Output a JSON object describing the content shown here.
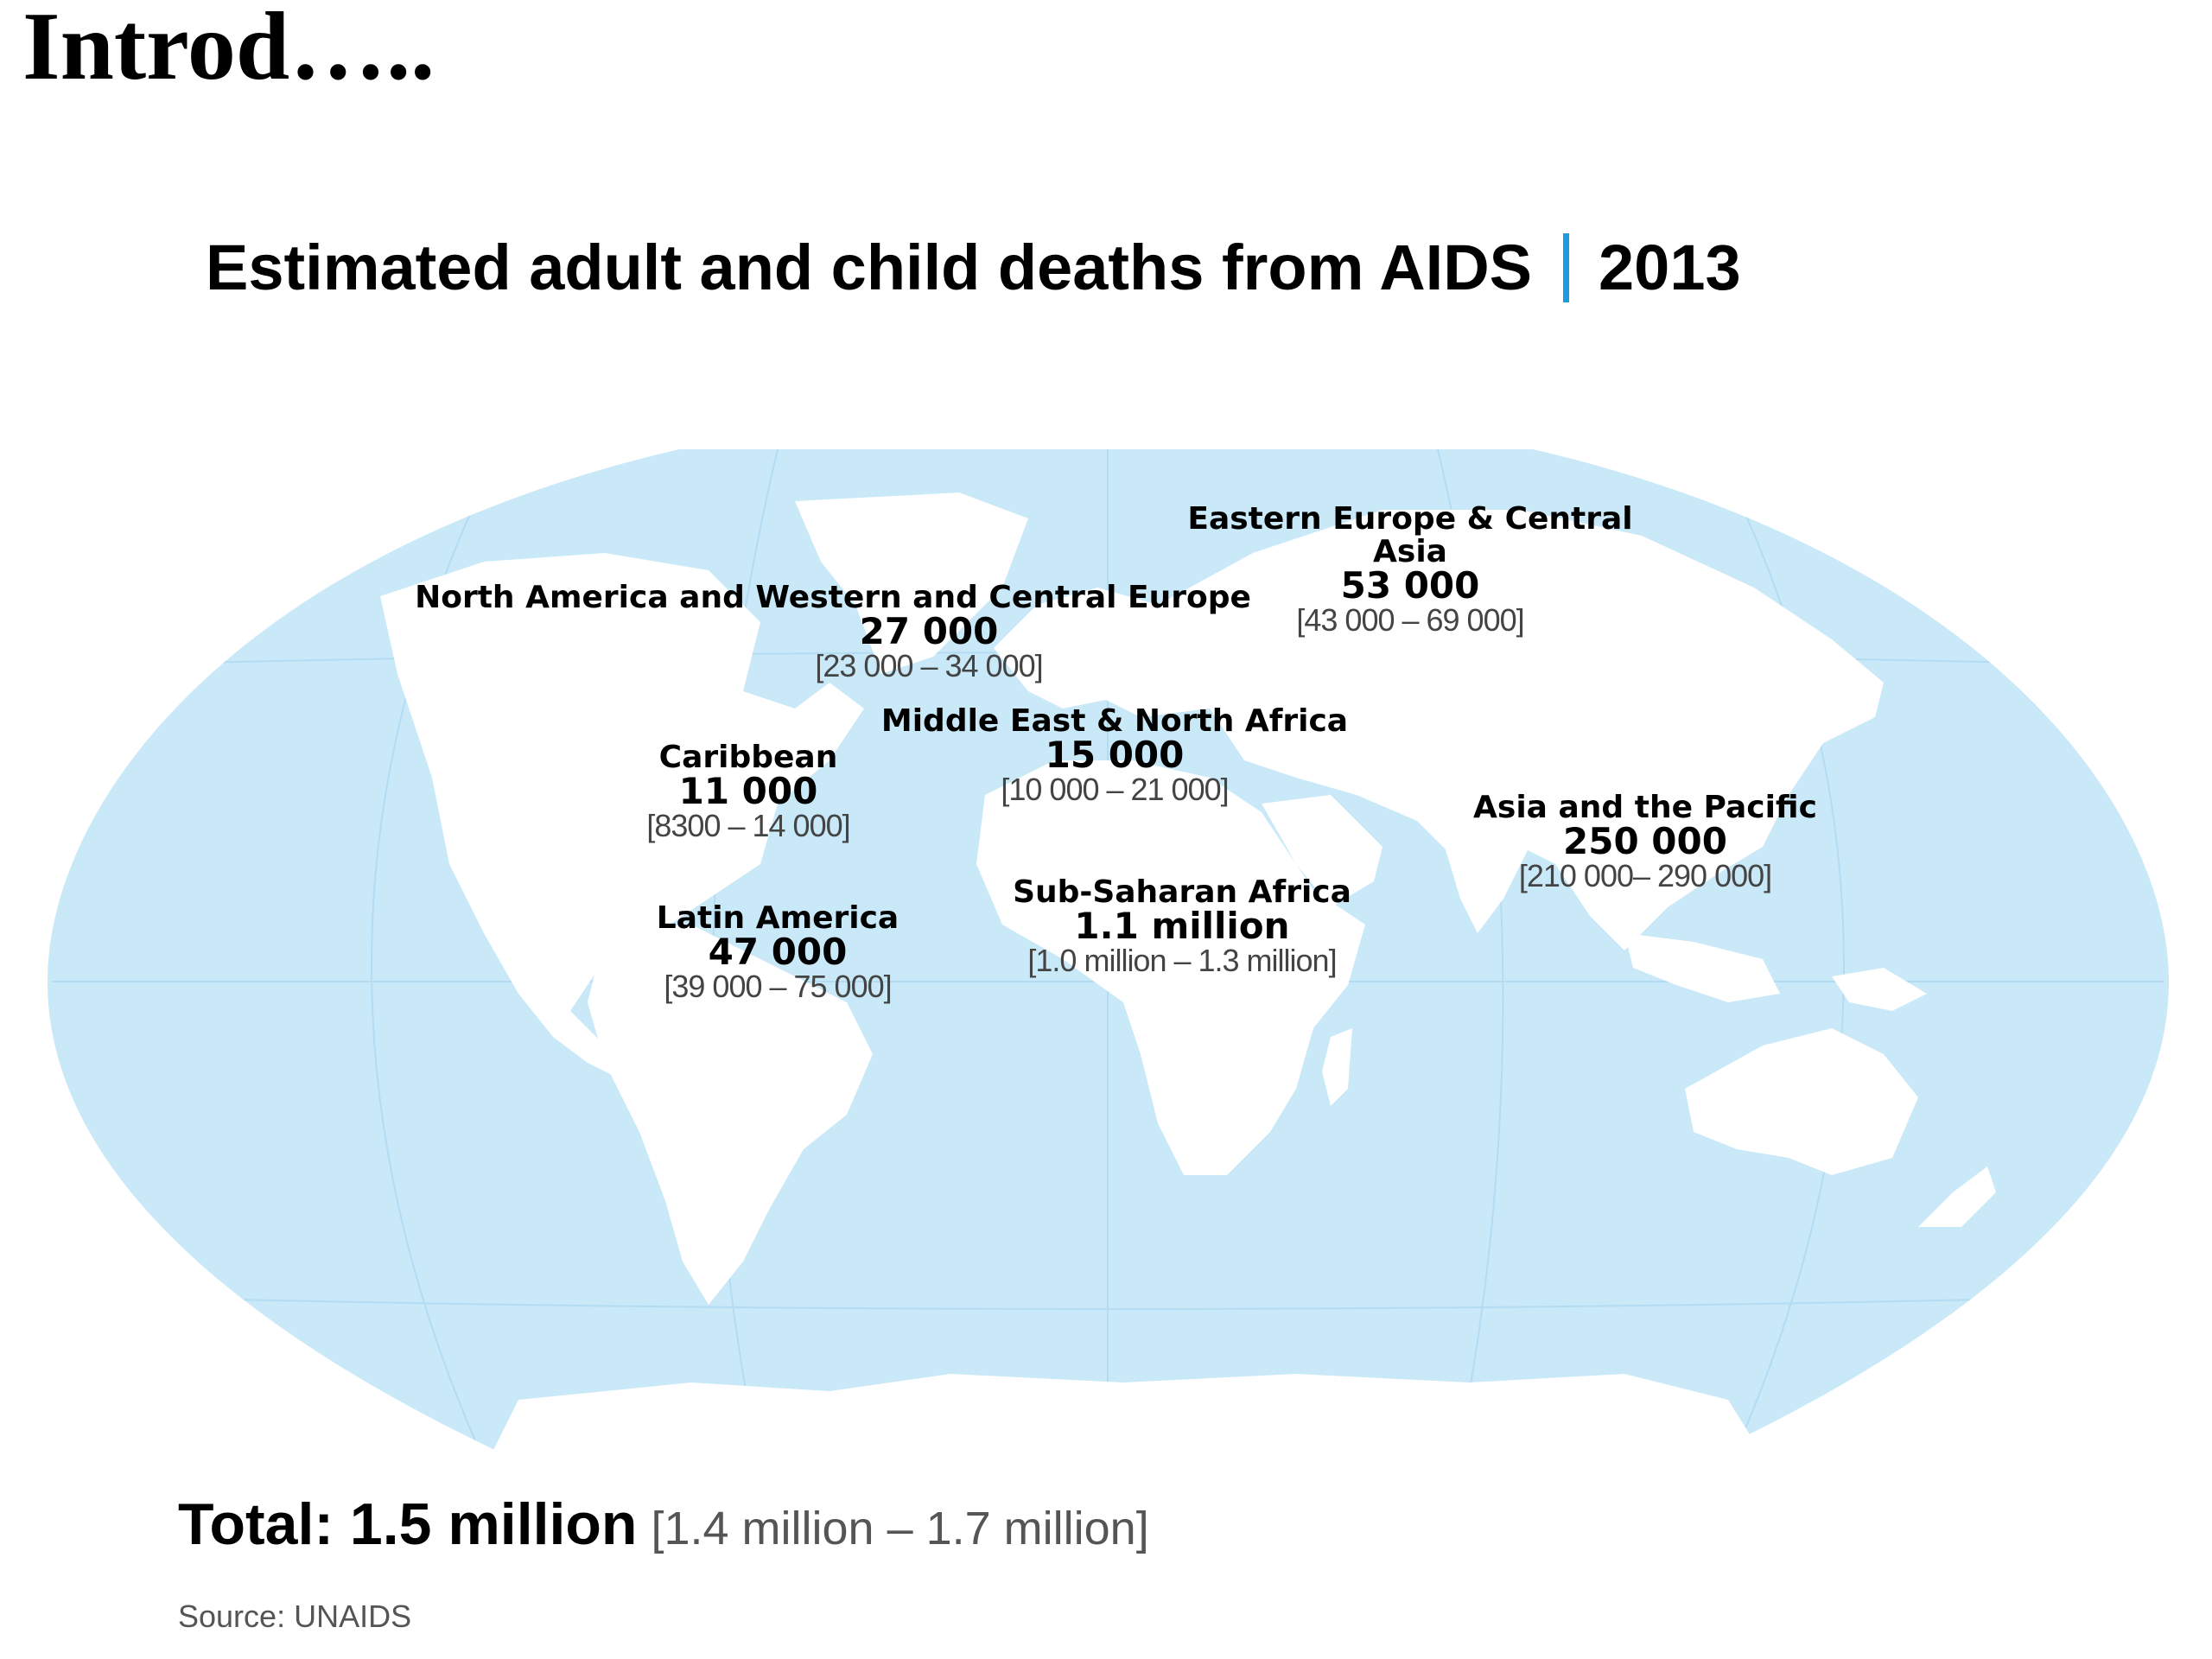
{
  "slide": {
    "heading": "Introd….."
  },
  "chart_title": {
    "main": "Estimated adult and child deaths from AIDS",
    "year": "2013"
  },
  "colors": {
    "ocean": "#c9e8f8",
    "land": "#ffffff",
    "accent": "#1e9be0",
    "grid": "#b3dcf2"
  },
  "regions": [
    {
      "id": "eeca",
      "name_lines": [
        "Eastern Europe & Central",
        "Asia"
      ],
      "value": "53 000",
      "range": "[43 000 – 69 000]"
    },
    {
      "id": "nawce",
      "name_lines": [
        "North America and Western and Central Europe"
      ],
      "value": "27 000",
      "range": "[23 000 – 34 000]"
    },
    {
      "id": "mena",
      "name_lines": [
        "Middle East & North Africa"
      ],
      "value": "15 000",
      "range": "[10 000 – 21 000]"
    },
    {
      "id": "caribbean",
      "name_lines": [
        "Caribbean"
      ],
      "value": "11 000",
      "range": "[8300 – 14 000]"
    },
    {
      "id": "asia-pacific",
      "name_lines": [
        "Asia and the Pacific"
      ],
      "value": "250 000",
      "range": "[210 000– 290 000]"
    },
    {
      "id": "ssa",
      "name_lines": [
        "Sub-Saharan Africa"
      ],
      "value": "1.1 million",
      "range": "[1.0 million – 1.3 million]"
    },
    {
      "id": "latin-america",
      "name_lines": [
        "Latin America"
      ],
      "value": "47 000",
      "range": "[39 000 – 75 000]"
    }
  ],
  "total": {
    "label": "Total: 1.5 million",
    "range": "[1.4 million – 1.7 million]"
  },
  "source": "Source: UNAIDS"
}
